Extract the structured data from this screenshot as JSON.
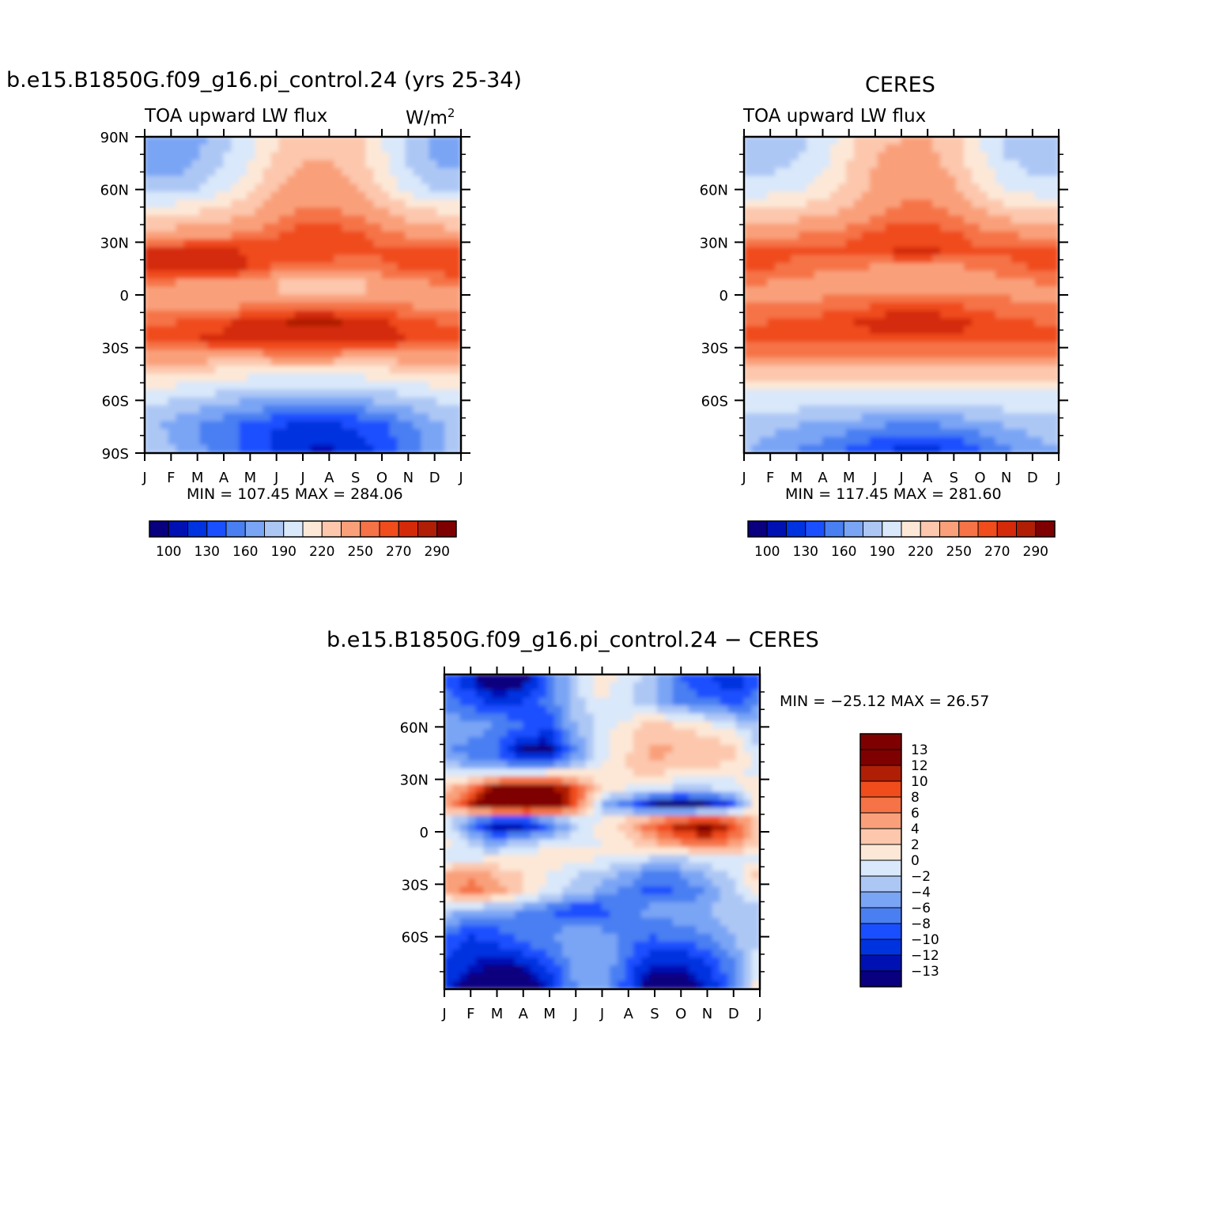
{
  "colors": {
    "palette": [
      "#08007f",
      "#0011b3",
      "#0033e0",
      "#1a4fff",
      "#4a7ff2",
      "#7aa5f5",
      "#adc7f5",
      "#d9e8fa",
      "#fde8d7",
      "#fcc7ad",
      "#f9a07a",
      "#f57347",
      "#f04c1c",
      "#d42a0a",
      "#b01e06",
      "#7f0000"
    ],
    "diff_palette": [
      "#08007f",
      "#0011b3",
      "#0033e0",
      "#1a4fff",
      "#4a7ff2",
      "#7aa5f5",
      "#adc7f5",
      "#d9e8fa",
      "#fde8d7",
      "#fcc7ad",
      "#f9a07a",
      "#f57347",
      "#f04c1c",
      "#b01e06",
      "#7f0000"
    ]
  },
  "panel_model": {
    "title": "b.e15.B1850G.f09_g16.pi_control.24 (yrs 25-34)",
    "left_label": "TOA upward LW flux",
    "right_label": "W/m",
    "right_label_sup": "2",
    "stats": "MIN =  107.45  MAX =  284.06"
  },
  "panel_obs": {
    "title": "CERES",
    "left_label": "TOA upward LW flux",
    "stats": "MIN =  117.45  MAX =  281.60"
  },
  "panel_diff": {
    "title": "b.e15.B1850G.f09_g16.pi_control.24 − CERES",
    "stats": "MIN =  −25.12  MAX =   26.57"
  },
  "chart_data": [
    {
      "type": "heatmap",
      "name": "model",
      "x_tick_labels": [
        "J",
        "F",
        "M",
        "A",
        "M",
        "J",
        "J",
        "A",
        "S",
        "O",
        "N",
        "D",
        "J"
      ],
      "y_tick_labels": [
        "90N",
        "60N",
        "30N",
        "0",
        "30S",
        "60S",
        "90S"
      ],
      "colorbar_labels": [
        "100",
        "130",
        "160",
        "190",
        "220",
        "250",
        "270",
        "290"
      ],
      "min": 107.45,
      "max": 284.06,
      "rows_lat": [
        90,
        75,
        60,
        45,
        35,
        25,
        15,
        5,
        -5,
        -15,
        -25,
        -35,
        -45,
        -60,
        -75,
        -90
      ],
      "grid": [
        [
          165,
          160,
          170,
          185,
          200,
          215,
          230,
          230,
          225,
          205,
          185,
          170,
          165
        ],
        [
          170,
          165,
          175,
          190,
          205,
          225,
          235,
          235,
          230,
          210,
          190,
          175,
          170
        ],
        [
          185,
          185,
          190,
          200,
          215,
          235,
          240,
          240,
          235,
          220,
          200,
          190,
          185
        ],
        [
          220,
          220,
          225,
          230,
          235,
          245,
          255,
          255,
          250,
          240,
          230,
          225,
          220
        ],
        [
          240,
          240,
          245,
          245,
          250,
          258,
          265,
          265,
          262,
          255,
          248,
          242,
          240
        ],
        [
          270,
          272,
          275,
          275,
          268,
          265,
          265,
          265,
          262,
          262,
          262,
          265,
          268
        ],
        [
          272,
          276,
          280,
          278,
          268,
          258,
          255,
          255,
          255,
          258,
          262,
          265,
          270
        ],
        [
          250,
          245,
          240,
          240,
          238,
          230,
          225,
          222,
          225,
          235,
          245,
          248,
          250
        ],
        [
          245,
          240,
          235,
          240,
          248,
          250,
          252,
          252,
          250,
          250,
          248,
          245,
          245
        ],
        [
          255,
          258,
          262,
          268,
          272,
          278,
          282,
          282,
          278,
          272,
          265,
          260,
          255
        ],
        [
          265,
          268,
          270,
          272,
          275,
          278,
          278,
          278,
          275,
          272,
          270,
          268,
          265
        ],
        [
          245,
          245,
          245,
          245,
          245,
          248,
          248,
          248,
          245,
          245,
          245,
          245,
          245
        ],
        [
          220,
          220,
          215,
          212,
          210,
          210,
          210,
          210,
          210,
          212,
          215,
          218,
          220
        ],
        [
          195,
          190,
          185,
          180,
          175,
          170,
          170,
          170,
          172,
          178,
          185,
          190,
          195
        ],
        [
          180,
          170,
          160,
          150,
          140,
          130,
          125,
          125,
          130,
          140,
          155,
          170,
          180
        ],
        [
          190,
          180,
          165,
          150,
          140,
          125,
          115,
          110,
          120,
          135,
          150,
          170,
          185
        ]
      ]
    },
    {
      "type": "heatmap",
      "name": "obs",
      "x_tick_labels": [
        "J",
        "F",
        "M",
        "A",
        "M",
        "J",
        "J",
        "A",
        "S",
        "O",
        "N",
        "D",
        "J"
      ],
      "y_tick_labels": [
        "60N",
        "30N",
        "0",
        "30S",
        "60S"
      ],
      "colorbar_labels": [
        "100",
        "130",
        "160",
        "190",
        "220",
        "250",
        "270",
        "290"
      ],
      "min": 117.45,
      "max": 281.6,
      "rows_lat": [
        90,
        75,
        60,
        45,
        35,
        25,
        15,
        5,
        -5,
        -15,
        -25,
        -35,
        -45,
        -60,
        -75,
        -90
      ],
      "grid": [
        [
          175,
          180,
          185,
          195,
          215,
          230,
          235,
          235,
          225,
          205,
          185,
          178,
          175
        ],
        [
          182,
          185,
          190,
          200,
          220,
          235,
          240,
          240,
          230,
          210,
          192,
          185,
          182
        ],
        [
          195,
          198,
          200,
          210,
          225,
          240,
          245,
          245,
          238,
          220,
          205,
          198,
          195
        ],
        [
          225,
          228,
          230,
          235,
          240,
          250,
          255,
          255,
          250,
          240,
          232,
          228,
          225
        ],
        [
          242,
          245,
          248,
          250,
          255,
          262,
          266,
          266,
          262,
          255,
          250,
          245,
          242
        ],
        [
          270,
          268,
          262,
          262,
          265,
          268,
          272,
          272,
          268,
          262,
          262,
          266,
          270
        ],
        [
          265,
          260,
          255,
          252,
          250,
          248,
          248,
          248,
          248,
          250,
          255,
          260,
          265
        ],
        [
          250,
          248,
          245,
          245,
          242,
          240,
          238,
          238,
          240,
          242,
          245,
          248,
          250
        ],
        [
          250,
          250,
          250,
          252,
          255,
          258,
          260,
          260,
          258,
          255,
          252,
          250,
          250
        ],
        [
          258,
          260,
          262,
          265,
          270,
          275,
          278,
          278,
          275,
          268,
          262,
          260,
          258
        ],
        [
          265,
          265,
          265,
          265,
          265,
          268,
          268,
          268,
          268,
          265,
          265,
          265,
          265
        ],
        [
          248,
          248,
          248,
          248,
          248,
          248,
          248,
          248,
          248,
          248,
          248,
          248,
          248
        ],
        [
          225,
          225,
          225,
          225,
          225,
          225,
          225,
          225,
          225,
          225,
          225,
          225,
          225
        ],
        [
          198,
          198,
          198,
          198,
          198,
          198,
          198,
          198,
          198,
          198,
          198,
          198,
          198
        ],
        [
          180,
          178,
          175,
          170,
          165,
          160,
          155,
          155,
          160,
          168,
          175,
          178,
          180
        ],
        [
          175,
          170,
          160,
          150,
          140,
          130,
          122,
          120,
          128,
          140,
          155,
          168,
          175
        ]
      ]
    },
    {
      "type": "heatmap",
      "name": "difference",
      "x_tick_labels": [
        "J",
        "F",
        "M",
        "A",
        "M",
        "J",
        "J",
        "A",
        "S",
        "O",
        "N",
        "D",
        "J"
      ],
      "y_tick_labels": [
        "60N",
        "30N",
        "0",
        "30S",
        "60S"
      ],
      "colorbar_labels": [
        "13",
        "12",
        "10",
        "8",
        "6",
        "4",
        "2",
        "0",
        "−2",
        "−4",
        "−6",
        "−8",
        "−10",
        "−12",
        "−13"
      ],
      "min": -25.12,
      "max": 26.57,
      "rows_lat": [
        90,
        75,
        60,
        45,
        35,
        25,
        15,
        5,
        -5,
        -15,
        -25,
        -35,
        -45,
        -60,
        -75,
        -90
      ],
      "grid": [
        [
          -9,
          -12,
          -18,
          -15,
          -8,
          -2,
          2,
          -1,
          -3,
          -8,
          -10,
          -12,
          -9
        ],
        [
          -7,
          -9,
          -11,
          -10,
          -7,
          -3,
          0,
          -2,
          -4,
          -7,
          -8,
          -9,
          -7
        ],
        [
          -4,
          -5,
          -6,
          -8,
          -9,
          -4,
          -1,
          1,
          3,
          2,
          1,
          -1,
          -4
        ],
        [
          -6,
          -7,
          -8,
          -14,
          -15,
          -7,
          -1,
          2,
          5,
          4,
          4,
          3,
          -2
        ],
        [
          -2,
          -3,
          -4,
          -3,
          -2,
          -1,
          1,
          2,
          3,
          2,
          2,
          1,
          -1
        ],
        [
          3,
          6,
          13,
          15,
          14,
          8,
          2,
          0,
          -1,
          -2,
          -2,
          -1,
          2
        ],
        [
          4,
          12,
          20,
          22,
          18,
          9,
          -4,
          -8,
          -14,
          -15,
          -14,
          -9,
          2
        ],
        [
          -2,
          -8,
          -16,
          -15,
          -10,
          -3,
          1,
          4,
          9,
          12,
          14,
          10,
          2
        ],
        [
          1,
          -3,
          -6,
          -4,
          -2,
          -1,
          0,
          2,
          5,
          8,
          10,
          7,
          3
        ],
        [
          -2,
          -1,
          0,
          1,
          2,
          1,
          0,
          -1,
          -2,
          -2,
          -1,
          0,
          -1
        ],
        [
          5,
          6,
          4,
          2,
          0,
          -2,
          -3,
          -5,
          -7,
          -6,
          -4,
          -1,
          3
        ],
        [
          4,
          7,
          5,
          2,
          -1,
          -3,
          -5,
          -7,
          -9,
          -8,
          -6,
          -3,
          2
        ],
        [
          -3,
          -4,
          -5,
          -6,
          -8,
          -10,
          -9,
          -7,
          -5,
          -5,
          -4,
          -3,
          -3
        ],
        [
          -8,
          -10,
          -9,
          -7,
          -6,
          -4,
          -5,
          -7,
          -8,
          -7,
          -6,
          -4,
          -2
        ],
        [
          -10,
          -12,
          -13,
          -12,
          -9,
          -5,
          -4,
          -8,
          -12,
          -12,
          -10,
          -6,
          -1
        ],
        [
          -12,
          -14,
          -16,
          -16,
          -12,
          -6,
          -5,
          -10,
          -16,
          -15,
          -12,
          -8,
          2
        ]
      ]
    }
  ]
}
